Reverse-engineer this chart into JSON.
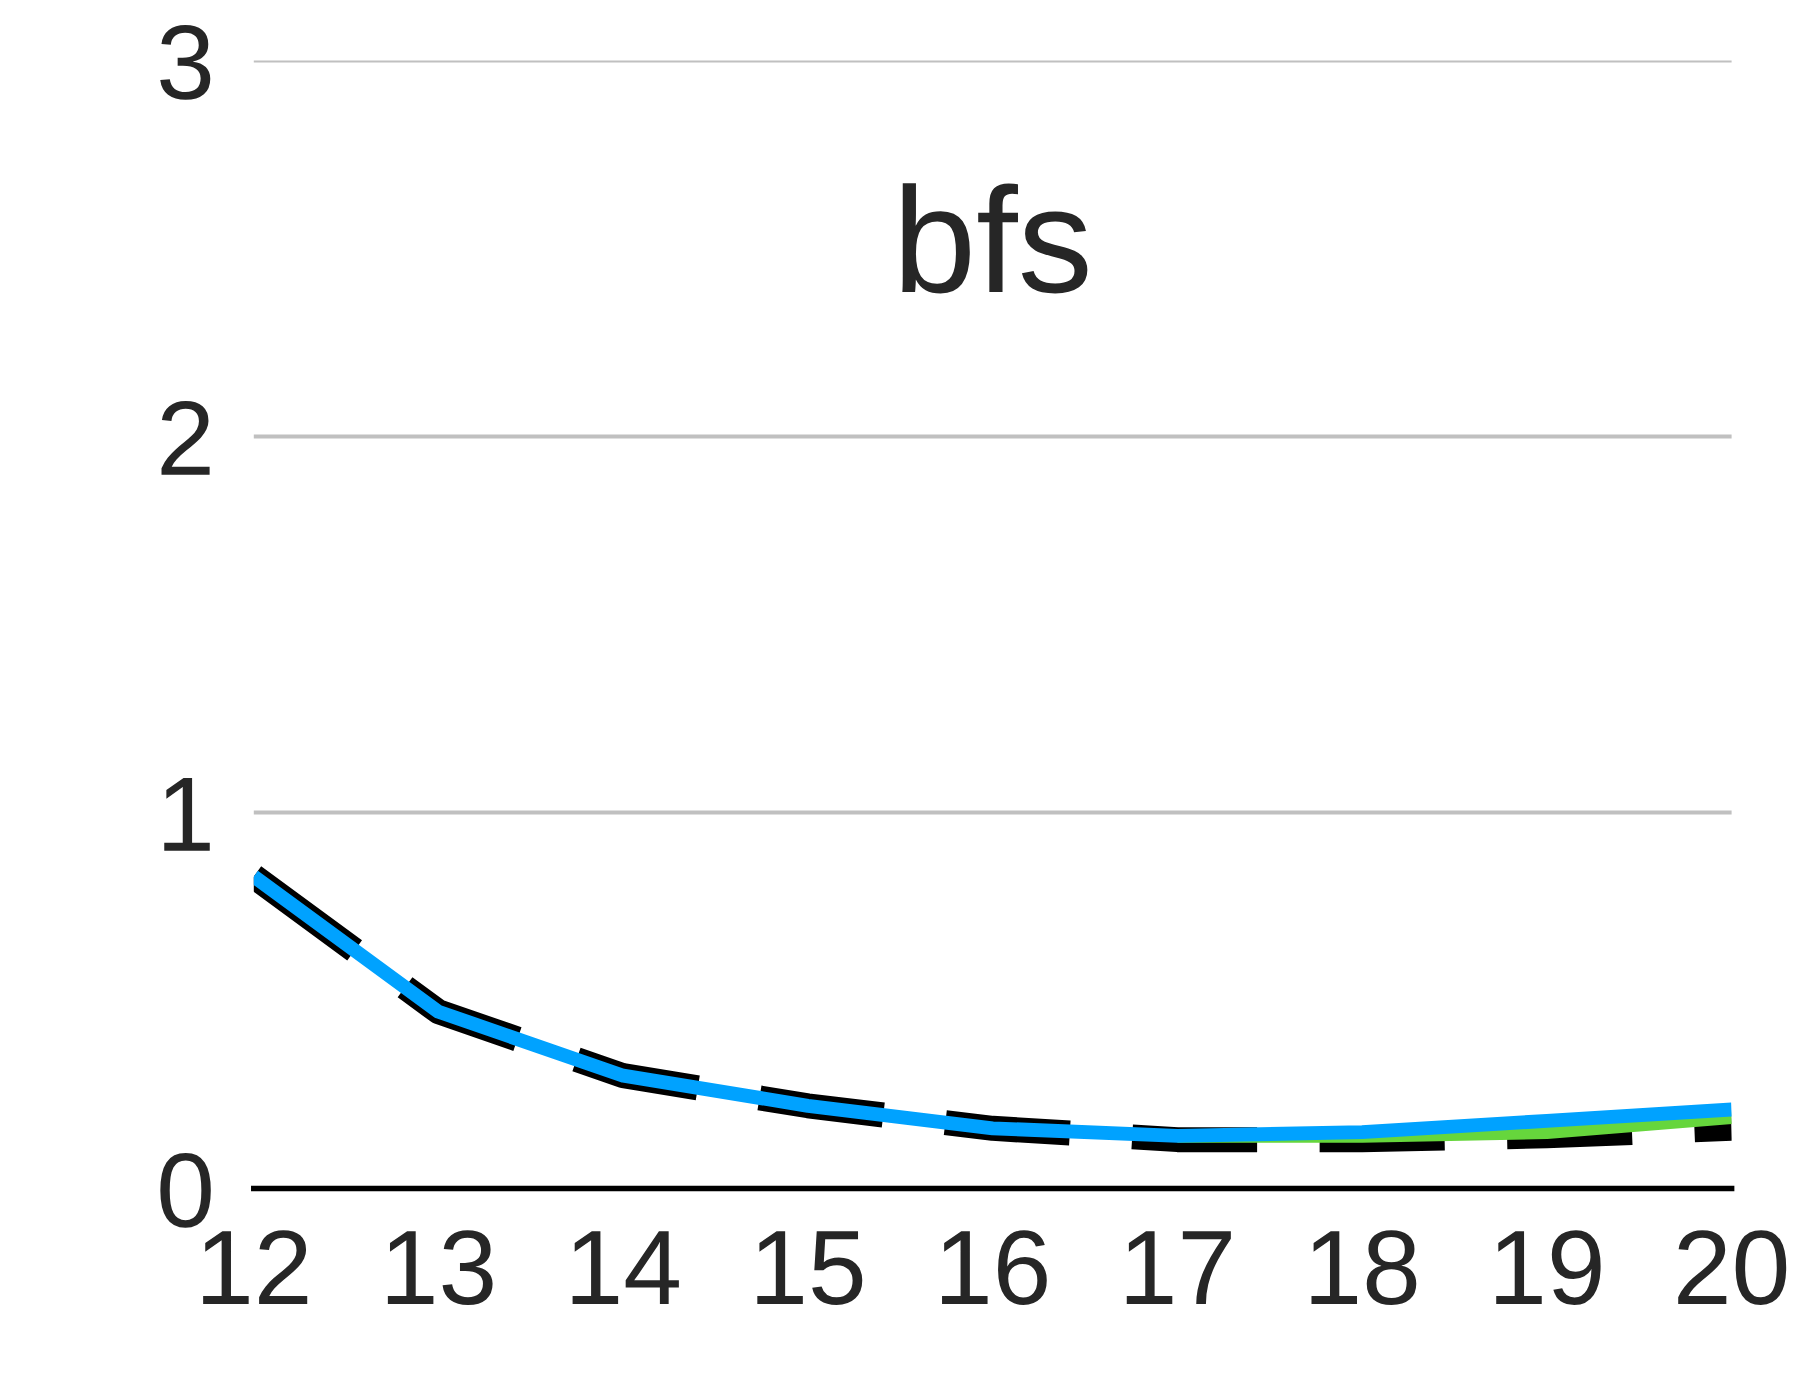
{
  "chart_data": {
    "type": "line",
    "title": "bfs",
    "x": [
      12,
      13,
      14,
      15,
      16,
      17,
      18,
      19,
      20
    ],
    "series": [
      {
        "color": "#000000",
        "line_style": "dashed",
        "values": [
          0.83,
          0.47,
          0.3,
          0.22,
          0.16,
          0.13,
          0.13,
          0.14,
          0.16
        ]
      },
      {
        "color": "#66d63c",
        "line_style": "solid",
        "values": [
          null,
          null,
          null,
          null,
          null,
          0.14,
          0.14,
          0.15,
          0.19
        ]
      },
      {
        "color": "#00a2ff",
        "line_style": "solid",
        "values": [
          0.83,
          0.47,
          0.3,
          0.22,
          0.16,
          0.14,
          0.15,
          0.18,
          0.21
        ]
      }
    ],
    "xlim": [
      12,
      20
    ],
    "xticks": [
      12,
      13,
      14,
      15,
      16,
      17,
      18,
      19,
      20
    ],
    "ylim": [
      0,
      3
    ],
    "yticks": [
      0,
      1,
      2,
      3
    ],
    "grid": "y",
    "marker": "none"
  }
}
